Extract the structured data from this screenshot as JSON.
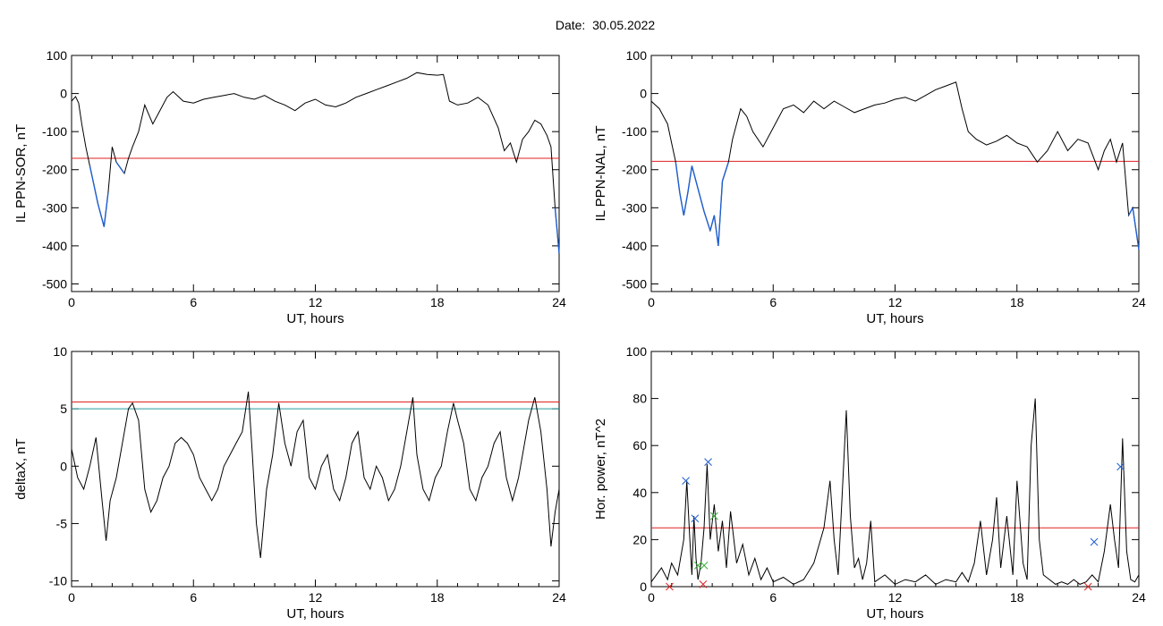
{
  "header": {
    "date_label": "Date:",
    "date_value": "30.05.2022"
  },
  "colors": {
    "trace": "#000000",
    "substorm": "#1f5fd0",
    "threshold_red": "#e02020",
    "threshold_teal": "#2a9aa0",
    "marker_blue": "#1f5fd0",
    "marker_green": "#30b030",
    "marker_red": "#e02020"
  },
  "chart_data": [
    {
      "type": "line",
      "title": "",
      "xlabel": "UT, hours",
      "ylabel": "IL PPN-SOR, nT",
      "xlim": [
        0,
        24
      ],
      "ylim": [
        -520,
        100
      ],
      "xticks": [
        0,
        6,
        12,
        18,
        24
      ],
      "yticks": [
        100,
        0,
        -100,
        -200,
        -300,
        -400,
        -500
      ],
      "threshold": {
        "value": -170,
        "color": "#e02020"
      },
      "series": [
        {
          "x": [
            0,
            0.2,
            0.35,
            0.5,
            0.7,
            0.9,
            1.1,
            1.3,
            1.5,
            1.6,
            1.8,
            2.0,
            2.2,
            2.4,
            2.6,
            2.8,
            3.0,
            3.3,
            3.6,
            4.0,
            4.3,
            4.7,
            5.0,
            5.5,
            6.0,
            6.5,
            7.0,
            7.5,
            8.0,
            8.5,
            9.0,
            9.5,
            10.0,
            10.5,
            11.0,
            11.5,
            12.0,
            12.5,
            13.0,
            13.5,
            14.0,
            14.5,
            15.0,
            15.5,
            16.0,
            16.5,
            17.0,
            17.5,
            18.0,
            18.3,
            18.6,
            19.0,
            19.5,
            20.0,
            20.5,
            21.0,
            21.3,
            21.6,
            21.9,
            22.2,
            22.5,
            22.8,
            23.1,
            23.4,
            23.6,
            23.8,
            24.0
          ],
          "y": [
            -20,
            -8,
            -25,
            -80,
            -140,
            -190,
            -240,
            -290,
            -330,
            -350,
            -260,
            -140,
            -180,
            -195,
            -210,
            -170,
            -140,
            -100,
            -30,
            -80,
            -50,
            -10,
            5,
            -20,
            -25,
            -15,
            -10,
            -5,
            0,
            -10,
            -15,
            -5,
            -20,
            -30,
            -45,
            -25,
            -15,
            -30,
            -35,
            -25,
            -10,
            0,
            10,
            20,
            30,
            40,
            55,
            50,
            48,
            50,
            -20,
            -30,
            -25,
            -10,
            -30,
            -90,
            -150,
            -130,
            -180,
            -120,
            -100,
            -70,
            -80,
            -110,
            -140,
            -300,
            -420
          ]
        }
      ]
    },
    {
      "type": "line",
      "title": "",
      "xlabel": "UT, hours",
      "ylabel": "IL PPN-NAL, nT",
      "xlim": [
        0,
        24
      ],
      "ylim": [
        -520,
        100
      ],
      "xticks": [
        0,
        6,
        12,
        18,
        24
      ],
      "yticks": [
        100,
        0,
        -100,
        -200,
        -300,
        -400,
        -500
      ],
      "threshold": {
        "value": -178,
        "color": "#e02020"
      },
      "series": [
        {
          "x": [
            0,
            0.2,
            0.4,
            0.6,
            0.8,
            1.0,
            1.2,
            1.4,
            1.6,
            1.8,
            2.0,
            2.3,
            2.6,
            2.9,
            3.1,
            3.3,
            3.5,
            3.8,
            4.0,
            4.4,
            4.7,
            5.0,
            5.5,
            6.0,
            6.5,
            7.0,
            7.5,
            8.0,
            8.5,
            9.0,
            9.5,
            10.0,
            10.5,
            11.0,
            11.5,
            12.0,
            12.5,
            13.0,
            13.5,
            14.0,
            14.5,
            15.0,
            15.3,
            15.6,
            16.0,
            16.5,
            17.0,
            17.5,
            18.0,
            18.5,
            19.0,
            19.5,
            20.0,
            20.5,
            21.0,
            21.5,
            22.0,
            22.3,
            22.6,
            22.9,
            23.2,
            23.5,
            23.7,
            24.0
          ],
          "y": [
            -20,
            -30,
            -40,
            -60,
            -80,
            -130,
            -180,
            -260,
            -320,
            -260,
            -190,
            -250,
            -310,
            -360,
            -320,
            -400,
            -230,
            -180,
            -120,
            -40,
            -60,
            -100,
            -140,
            -90,
            -40,
            -30,
            -50,
            -20,
            -40,
            -20,
            -35,
            -50,
            -40,
            -30,
            -25,
            -15,
            -10,
            -20,
            -5,
            10,
            20,
            30,
            -40,
            -100,
            -120,
            -135,
            -125,
            -110,
            -130,
            -140,
            -180,
            -150,
            -100,
            -150,
            -120,
            -130,
            -200,
            -150,
            -120,
            -180,
            -130,
            -320,
            -300,
            -410
          ]
        }
      ]
    },
    {
      "type": "line",
      "title": "",
      "xlabel": "UT, hours",
      "ylabel": "deltaX, nT",
      "xlim": [
        0,
        24
      ],
      "ylim": [
        -10.5,
        10
      ],
      "xticks": [
        0,
        6,
        12,
        18,
        24
      ],
      "yticks": [
        10,
        5,
        0,
        -5,
        -10
      ],
      "thresholds": [
        {
          "value": 5.6,
          "color": "#e02020"
        },
        {
          "value": 5.0,
          "color": "#2a9aa0"
        }
      ],
      "series": [
        {
          "x": [
            0,
            0.3,
            0.6,
            0.9,
            1.2,
            1.5,
            1.7,
            1.9,
            2.2,
            2.5,
            2.8,
            3.0,
            3.3,
            3.6,
            3.9,
            4.2,
            4.5,
            4.8,
            5.1,
            5.4,
            5.7,
            6.0,
            6.3,
            6.6,
            6.9,
            7.2,
            7.5,
            7.8,
            8.1,
            8.4,
            8.7,
            8.9,
            9.1,
            9.3,
            9.6,
            9.9,
            10.2,
            10.5,
            10.8,
            11.1,
            11.4,
            11.7,
            12.0,
            12.3,
            12.6,
            12.9,
            13.2,
            13.5,
            13.8,
            14.1,
            14.4,
            14.7,
            15.0,
            15.3,
            15.6,
            15.9,
            16.2,
            16.5,
            16.8,
            17.0,
            17.3,
            17.6,
            17.9,
            18.2,
            18.5,
            18.8,
            19.0,
            19.3,
            19.6,
            19.9,
            20.2,
            20.5,
            20.8,
            21.1,
            21.4,
            21.7,
            22.0,
            22.3,
            22.5,
            22.8,
            23.1,
            23.4,
            23.6,
            23.8,
            24.0
          ],
          "y": [
            1.5,
            -1,
            -2,
            0,
            2.5,
            -3,
            -6.5,
            -3,
            -1,
            2,
            5,
            5.5,
            4,
            -2,
            -4,
            -3,
            -1,
            0,
            2,
            2.5,
            2,
            1,
            -1,
            -2,
            -3,
            -2,
            0,
            1,
            2,
            3,
            6.5,
            1,
            -5,
            -8,
            -2,
            1,
            5.5,
            2,
            0,
            3,
            4,
            -1,
            -2,
            0,
            1,
            -2,
            -3,
            -1,
            2,
            3,
            -1,
            -2,
            0,
            -1,
            -3,
            -2,
            0,
            3,
            6,
            1,
            -2,
            -3,
            -1,
            0,
            3,
            5.5,
            4,
            2,
            -2,
            -3,
            -1,
            0,
            2,
            3,
            -1,
            -3,
            -1,
            2,
            4,
            6,
            3,
            -2,
            -7,
            -4,
            -2
          ]
        }
      ]
    },
    {
      "type": "line",
      "title": "",
      "xlabel": "UT, hours",
      "ylabel": "Hor. power, nT^2",
      "xlim": [
        0,
        24
      ],
      "ylim": [
        0,
        100
      ],
      "xticks": [
        0,
        6,
        12,
        18,
        24
      ],
      "yticks": [
        100,
        80,
        60,
        40,
        20,
        0
      ],
      "threshold": {
        "value": 25,
        "color": "#e02020"
      },
      "series": [
        {
          "x": [
            0,
            0.5,
            0.8,
            1.0,
            1.3,
            1.6,
            1.75,
            1.9,
            2.0,
            2.1,
            2.2,
            2.3,
            2.45,
            2.6,
            2.75,
            2.9,
            3.1,
            3.3,
            3.5,
            3.7,
            3.9,
            4.2,
            4.5,
            4.8,
            5.1,
            5.4,
            5.7,
            6.0,
            6.5,
            7.0,
            7.5,
            8.0,
            8.5,
            8.8,
            9.0,
            9.2,
            9.4,
            9.6,
            9.8,
            10.0,
            10.2,
            10.4,
            10.6,
            10.8,
            11.0,
            11.5,
            12.0,
            12.5,
            13.0,
            13.5,
            14.0,
            14.5,
            15.0,
            15.3,
            15.6,
            15.9,
            16.2,
            16.5,
            16.8,
            17.0,
            17.2,
            17.5,
            17.8,
            18.0,
            18.3,
            18.5,
            18.7,
            18.9,
            19.1,
            19.3,
            19.6,
            19.9,
            20.2,
            20.5,
            20.8,
            21.1,
            21.4,
            21.7,
            22.0,
            22.3,
            22.6,
            22.8,
            23.0,
            23.2,
            23.4,
            23.6,
            23.8,
            24.0
          ],
          "y": [
            2,
            8,
            3,
            10,
            5,
            20,
            45,
            20,
            5,
            30,
            12,
            3,
            10,
            25,
            52,
            20,
            35,
            15,
            28,
            8,
            32,
            10,
            18,
            5,
            12,
            3,
            8,
            2,
            4,
            1,
            3,
            10,
            25,
            45,
            20,
            5,
            40,
            75,
            30,
            8,
            12,
            3,
            10,
            28,
            2,
            5,
            1,
            3,
            2,
            5,
            1,
            3,
            2,
            6,
            2,
            10,
            28,
            5,
            20,
            38,
            8,
            30,
            5,
            45,
            10,
            3,
            60,
            80,
            20,
            5,
            3,
            1,
            2,
            1,
            3,
            1,
            2,
            5,
            2,
            15,
            35,
            20,
            8,
            63,
            15,
            3,
            2,
            5
          ]
        }
      ],
      "markers": [
        {
          "x": 1.7,
          "y": 45,
          "color": "#1f5fd0"
        },
        {
          "x": 2.15,
          "y": 29,
          "color": "#1f5fd0"
        },
        {
          "x": 2.8,
          "y": 53,
          "color": "#1f5fd0"
        },
        {
          "x": 2.3,
          "y": 9,
          "color": "#30b030"
        },
        {
          "x": 2.6,
          "y": 9,
          "color": "#30b030"
        },
        {
          "x": 3.1,
          "y": 30,
          "color": "#30b030"
        },
        {
          "x": 2.55,
          "y": 1,
          "color": "#e02020"
        },
        {
          "x": 0.9,
          "y": 0,
          "color": "#e02020"
        },
        {
          "x": 21.8,
          "y": 19,
          "color": "#1f5fd0"
        },
        {
          "x": 23.1,
          "y": 51,
          "color": "#1f5fd0"
        },
        {
          "x": 21.5,
          "y": 0,
          "color": "#e02020"
        }
      ]
    }
  ]
}
